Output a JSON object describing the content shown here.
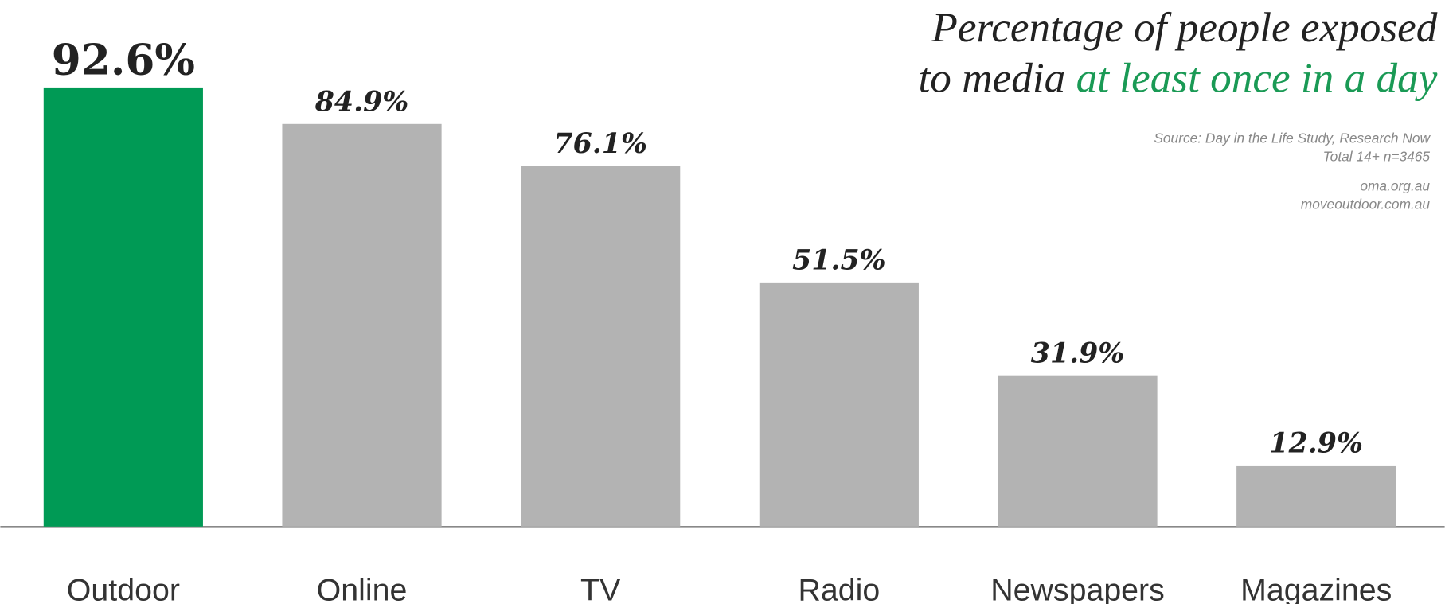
{
  "chart_data": {
    "type": "bar",
    "title_line1": "Percentage of people exposed",
    "title_line2": "to media",
    "title_highlight": "at least once in a day",
    "highlight_color": "#1a9a55",
    "source": [
      "Source: Day in the Life Study, Research  Now",
      "Total 14+ n=3465",
      "oma.org.au",
      "moveoutdoor.com.au"
    ],
    "categories": [
      "Outdoor",
      "Online",
      "TV",
      "Radio",
      "Newspapers",
      "Magazines"
    ],
    "values": [
      92.6,
      84.9,
      76.1,
      51.5,
      31.9,
      12.9
    ],
    "value_labels": [
      "92.6%",
      "84.9%",
      "76.1%",
      "51.5%",
      "31.9%",
      "12.9%"
    ],
    "colors": [
      "#009a55",
      "#b3b3b3",
      "#b3b3b3",
      "#b3b3b3",
      "#b3b3b3",
      "#b3b3b3"
    ]
  }
}
